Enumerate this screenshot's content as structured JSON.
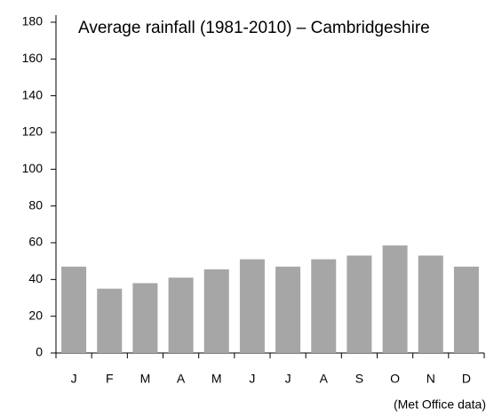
{
  "chart_data": {
    "type": "bar",
    "title": "Average rainfall (1981-2010) – Cambridgeshire",
    "annotation": "(Met Office data)",
    "categories": [
      "J",
      "F",
      "M",
      "A",
      "M",
      "J",
      "J",
      "A",
      "S",
      "O",
      "N",
      "D"
    ],
    "values": [
      47,
      35,
      38,
      41,
      45.5,
      51,
      47,
      51,
      53,
      58.5,
      53,
      47
    ],
    "color": "#a6a6a6",
    "ylim": [
      0,
      180
    ],
    "yticks": [
      0,
      20,
      40,
      60,
      80,
      100,
      120,
      140,
      160,
      180
    ],
    "grid": false
  }
}
